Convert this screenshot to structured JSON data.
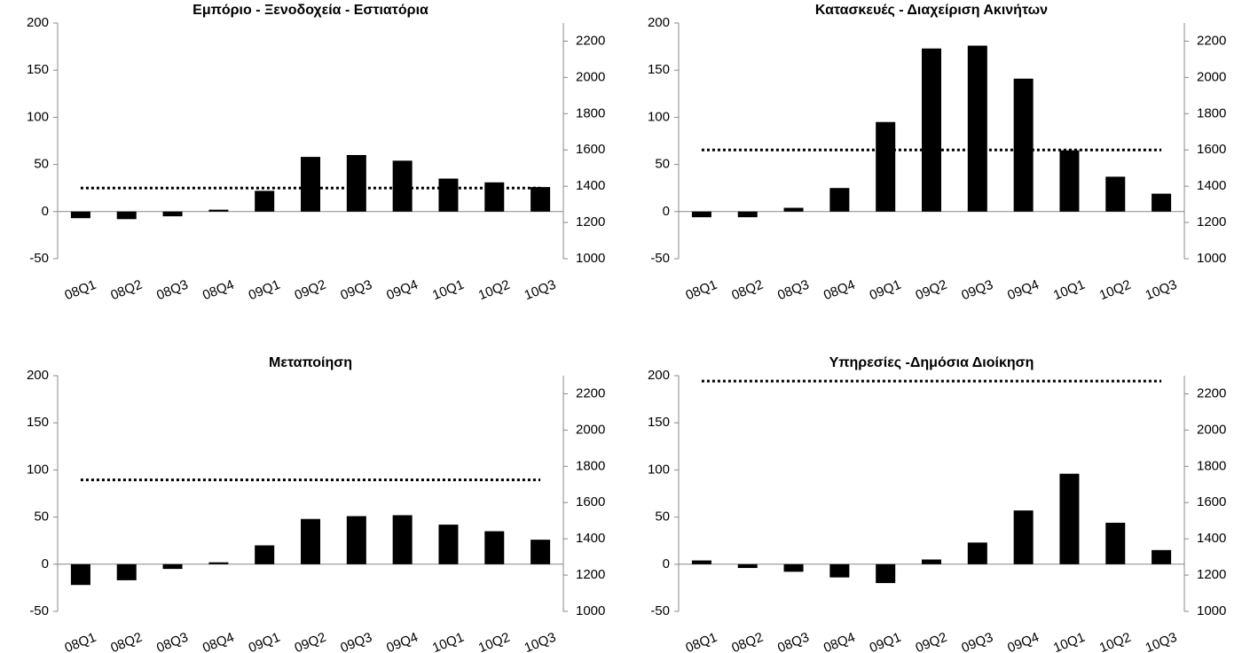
{
  "chart_data": [
    {
      "type": "bar-line",
      "title": "Εμπόριο - Ξενοδοχεία - Εστιατόρια",
      "categories": [
        "08Q1",
        "08Q2",
        "08Q3",
        "08Q4",
        "09Q1",
        "09Q2",
        "09Q3",
        "09Q4",
        "10Q1",
        "10Q2",
        "10Q3"
      ],
      "series": [
        {
          "type": "bar",
          "color": "#000000",
          "values": [
            -7,
            -8,
            -5,
            2,
            22,
            58,
            60,
            54,
            35,
            31,
            26
          ]
        },
        {
          "type": "line",
          "axis": "y2",
          "color": "#000000",
          "line_style": "dotted",
          "values": [
            1390,
            1390,
            1390,
            1390,
            1390,
            1390,
            1390,
            1390,
            1390,
            1390,
            1390
          ]
        }
      ],
      "ylim": [
        -50,
        200
      ],
      "yticks": [
        -50,
        0,
        50,
        100,
        150,
        200
      ],
      "y2lim": [
        1000,
        2300
      ],
      "y2ticks": [
        1000,
        1200,
        1400,
        1600,
        1800,
        2000,
        2200
      ],
      "grid": false
    },
    {
      "type": "bar-line",
      "title": "Κατασκευές - Διαχείριση Ακινήτων",
      "categories": [
        "08Q1",
        "08Q2",
        "08Q3",
        "08Q4",
        "09Q1",
        "09Q2",
        "09Q3",
        "09Q4",
        "10Q1",
        "10Q2",
        "10Q3"
      ],
      "series": [
        {
          "type": "bar",
          "color": "#000000",
          "values": [
            -6,
            -6,
            4,
            25,
            95,
            173,
            176,
            141,
            65,
            37,
            19
          ]
        },
        {
          "type": "line",
          "axis": "y2",
          "color": "#000000",
          "line_style": "dotted",
          "values": [
            1600,
            1600,
            1600,
            1600,
            1600,
            1600,
            1600,
            1600,
            1600,
            1600,
            1600
          ]
        }
      ],
      "ylim": [
        -50,
        200
      ],
      "yticks": [
        -50,
        0,
        50,
        100,
        150,
        200
      ],
      "y2lim": [
        1000,
        2300
      ],
      "y2ticks": [
        1000,
        1200,
        1400,
        1600,
        1800,
        2000,
        2200
      ],
      "grid": false
    },
    {
      "type": "bar-line",
      "title": "Μεταποίηση",
      "categories": [
        "08Q1",
        "08Q2",
        "08Q3",
        "08Q4",
        "09Q1",
        "09Q2",
        "09Q3",
        "09Q4",
        "10Q1",
        "10Q2",
        "10Q3"
      ],
      "series": [
        {
          "type": "bar",
          "color": "#000000",
          "values": [
            -22,
            -17,
            -5,
            2,
            20,
            48,
            51,
            52,
            42,
            35,
            26
          ]
        },
        {
          "type": "line",
          "axis": "y2",
          "color": "#000000",
          "line_style": "dotted",
          "values": [
            1725,
            1725,
            1725,
            1725,
            1725,
            1725,
            1725,
            1725,
            1725,
            1725,
            1725
          ]
        }
      ],
      "ylim": [
        -50,
        200
      ],
      "yticks": [
        -50,
        0,
        50,
        100,
        150,
        200
      ],
      "y2lim": [
        1000,
        2300
      ],
      "y2ticks": [
        1000,
        1200,
        1400,
        1600,
        1800,
        2000,
        2200
      ],
      "grid": false
    },
    {
      "type": "bar-line",
      "title": "Υπηρεσίες -Δημόσια Διοίκηση",
      "categories": [
        "08Q1",
        "08Q2",
        "08Q3",
        "08Q4",
        "09Q1",
        "09Q2",
        "09Q3",
        "09Q4",
        "10Q1",
        "10Q2",
        "10Q3"
      ],
      "series": [
        {
          "type": "bar",
          "color": "#000000",
          "values": [
            4,
            -4,
            -8,
            -14,
            -20,
            5,
            23,
            57,
            96,
            44,
            15
          ]
        },
        {
          "type": "line",
          "axis": "y2",
          "color": "#000000",
          "line_style": "dotted",
          "values": [
            2270,
            2270,
            2270,
            2270,
            2270,
            2270,
            2270,
            2270,
            2270,
            2270,
            2270
          ]
        }
      ],
      "ylim": [
        -50,
        200
      ],
      "yticks": [
        -50,
        0,
        50,
        100,
        150,
        200
      ],
      "y2lim": [
        1000,
        2300
      ],
      "y2ticks": [
        1000,
        1200,
        1400,
        1600,
        1800,
        2000,
        2200
      ],
      "grid": false
    }
  ]
}
